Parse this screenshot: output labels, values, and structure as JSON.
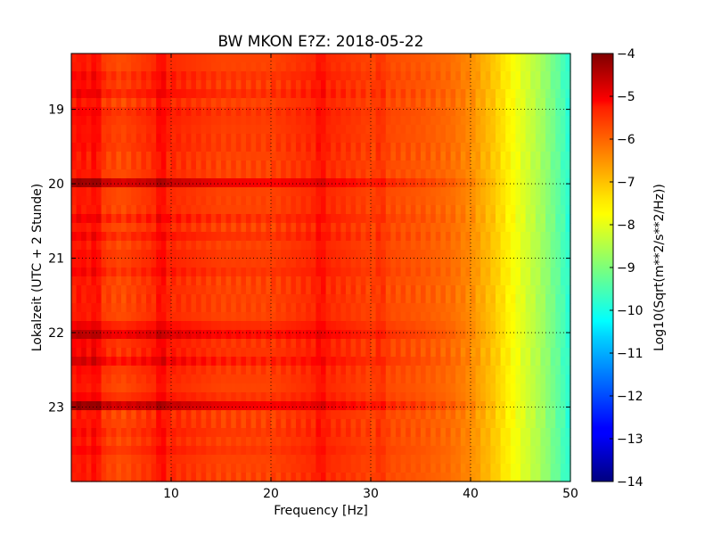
{
  "chart_data": {
    "type": "heatmap",
    "title": "BW MKON E?Z: 2018-05-22",
    "xlabel": "Frequency [Hz]",
    "ylabel": "Lokalzeit (UTC + 2 Stunde)",
    "xlim": [
      0,
      50
    ],
    "ylim": [
      18.25,
      24.0
    ],
    "y_inverted": true,
    "x_ticks": [
      10,
      20,
      30,
      40,
      50
    ],
    "y_ticks": [
      19,
      20,
      21,
      22,
      23
    ],
    "grid": true,
    "colorbar": {
      "label": "Log10(Sqrt(m**2/s**2/Hz))",
      "colormap": "jet",
      "range": [
        -14,
        -4
      ],
      "ticks": [
        -4,
        -5,
        -6,
        -7,
        -8,
        -9,
        -10,
        -11,
        -12,
        -13,
        -14
      ]
    },
    "spectrum_profile": {
      "frequency_hz": [
        0,
        1,
        3,
        5,
        9,
        15,
        20,
        25,
        30,
        35,
        38,
        40,
        41,
        42,
        43,
        44,
        45,
        46,
        47,
        48,
        49,
        50
      ],
      "log_amplitude": [
        -5.6,
        -5.4,
        -5.8,
        -6.0,
        -5.6,
        -5.9,
        -5.9,
        -5.6,
        -5.9,
        -6.1,
        -6.3,
        -6.6,
        -6.9,
        -7.1,
        -7.4,
        -7.7,
        -8.0,
        -8.3,
        -8.6,
        -9.0,
        -9.4,
        -9.9
      ]
    },
    "time_features": [
      {
        "hour": 18.6,
        "delta": 0.5
      },
      {
        "hour": 18.8,
        "delta": 0.4
      },
      {
        "hour": 19.05,
        "delta": 0.3
      },
      {
        "hour": 19.2,
        "delta": 0.3
      },
      {
        "hour": 19.45,
        "delta": 0.3
      },
      {
        "hour": 19.97,
        "delta": 1.5
      },
      {
        "hour": 20.45,
        "delta": 0.4
      },
      {
        "hour": 20.7,
        "delta": 0.3
      },
      {
        "hour": 21.0,
        "delta": 0.3
      },
      {
        "hour": 21.2,
        "delta": 0.3
      },
      {
        "hour": 21.9,
        "delta": 0.4
      },
      {
        "hour": 22.05,
        "delta": 1.3
      },
      {
        "hour": 22.2,
        "delta": 0.6
      },
      {
        "hour": 22.35,
        "delta": 1.0
      },
      {
        "hour": 22.55,
        "delta": 0.3
      },
      {
        "hour": 22.9,
        "delta": 0.4
      },
      {
        "hour": 23.0,
        "delta": 1.5
      },
      {
        "hour": 23.3,
        "delta": 0.3
      },
      {
        "hour": 23.55,
        "delta": 0.3
      }
    ],
    "frequency_features": [
      {
        "hz": 2.5,
        "delta": 0.5
      },
      {
        "hz": 9.0,
        "delta": 0.4
      },
      {
        "hz": 25.0,
        "delta": 0.3
      },
      {
        "hz": 31.0,
        "delta": 0.3
      }
    ]
  }
}
